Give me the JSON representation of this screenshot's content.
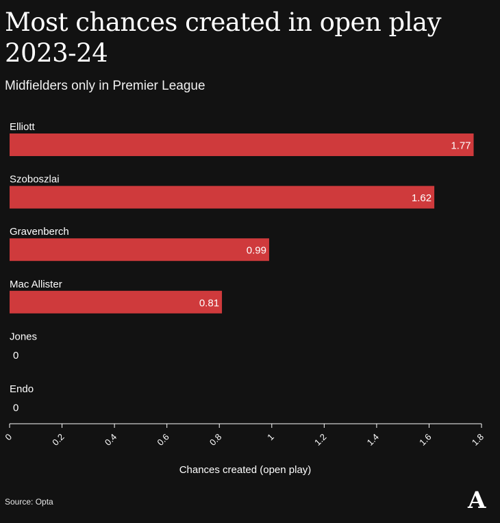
{
  "header": {
    "title": "Most chances created in open play 2023-24",
    "subtitle": "Midfielders only in Premier League"
  },
  "footer": {
    "source": "Source: Opta",
    "logo": "A"
  },
  "colors": {
    "background": "#121212",
    "bar": "#cf3a3c",
    "text": "#ffffff"
  },
  "chart_data": {
    "type": "bar",
    "orientation": "horizontal",
    "categories": [
      "Elliott",
      "Szoboszlai",
      "Gravenberch",
      "Mac Allister",
      "Jones",
      "Endo"
    ],
    "values": [
      1.77,
      1.62,
      0.99,
      0.81,
      0,
      0
    ],
    "value_labels": [
      "1.77",
      "1.62",
      "0.99",
      "0.81",
      "0",
      "0"
    ],
    "xlabel": "Chances created (open play)",
    "xlim": [
      0,
      1.8
    ],
    "xticks": [
      "0",
      "0.2",
      "0.4",
      "0.6",
      "0.8",
      "1",
      "1.2",
      "1.4",
      "1.6",
      "1.8"
    ],
    "grid": false,
    "legend": "none"
  }
}
